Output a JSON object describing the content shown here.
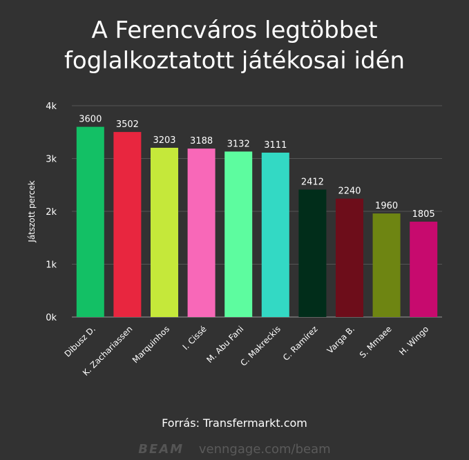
{
  "chart_data": {
    "type": "bar",
    "title": "A Ferencváros legtöbbet foglalkoztatott játékosai idén",
    "title_lines": [
      "A Ferencváros legtöbbet",
      "foglalkoztatott játékosai idén"
    ],
    "xlabel": "",
    "ylabel": "Játszott percek",
    "ylim": [
      0,
      4000
    ],
    "yticks": [
      0,
      1000,
      2000,
      3000,
      4000
    ],
    "ytick_labels": [
      "0k",
      "1k",
      "2k",
      "3k",
      "4k"
    ],
    "grid": true,
    "categories": [
      "Dibusz D.",
      "K. Zachariassen",
      "Marquinhos",
      "I. Cissé",
      "M. Abu Fani",
      "C. Makreckis",
      "C. Ramírez",
      "Varga B.",
      "S. Mmaee",
      "H. Wingo"
    ],
    "values": [
      3600,
      3502,
      3203,
      3188,
      3132,
      3111,
      2412,
      2240,
      1960,
      1805
    ],
    "colors": [
      "#13c065",
      "#e8263f",
      "#c5e83a",
      "#f868b8",
      "#5dfc9f",
      "#33d9c4",
      "#012d1a",
      "#6d0d1a",
      "#6e8512",
      "#c70a6e"
    ]
  },
  "source": "Forrás: Transfermarkt.com",
  "footer": {
    "logo": "BEAM",
    "url": "venngage.com/beam"
  }
}
